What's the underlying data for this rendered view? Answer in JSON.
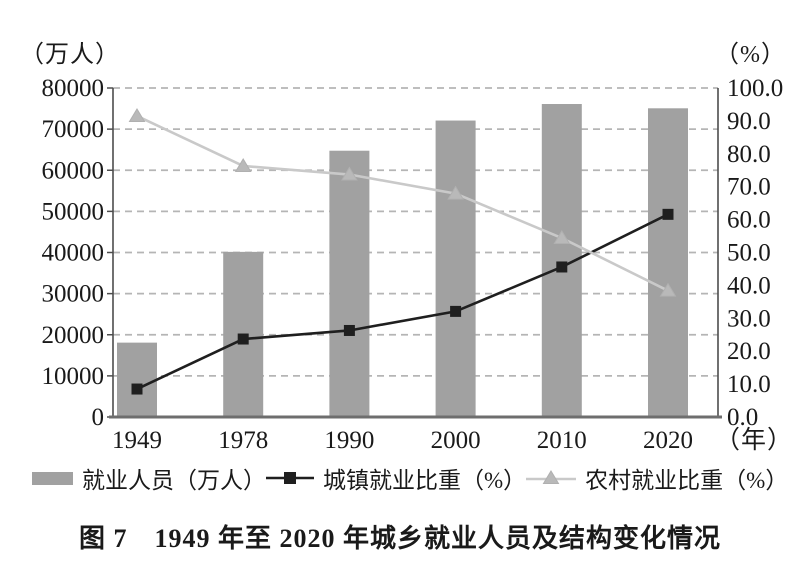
{
  "figure": {
    "caption": "图 7　1949 年至 2020 年城乡就业人员及结构变化情况"
  },
  "chart_data": {
    "type": "bar+line combo",
    "title": "图 7　1949 年至 2020 年城乡就业人员及结构变化情况",
    "categories": [
      "1949",
      "1978",
      "1990",
      "2000",
      "2010",
      "2020"
    ],
    "series": [
      {
        "name": "就业人员（万人）",
        "type": "bar",
        "axis": "left",
        "values": [
          18082,
          40152,
          64749,
          72085,
          76105,
          75064
        ],
        "color": "#a1a1a1"
      },
      {
        "name": "城镇就业比重（%）",
        "type": "line",
        "axis": "right",
        "marker": "square",
        "values": [
          8.5,
          23.7,
          26.3,
          32.1,
          45.6,
          61.6
        ],
        "color": "#1f1f1f",
        "marker_color": "#1f1f1f"
      },
      {
        "name": "农村就业比重（%）",
        "type": "line",
        "axis": "right",
        "marker": "triangle-up",
        "values": [
          91.5,
          76.3,
          73.7,
          67.9,
          54.4,
          38.4
        ],
        "color": "#c9c9c9",
        "marker_color": "#b9b9b9"
      }
    ],
    "left_axis": {
      "unit_label": "（万人）",
      "min": 0,
      "max": 80000,
      "step": 10000,
      "tick_labels": [
        "80000",
        "70000",
        "60000",
        "50000",
        "40000",
        "30000",
        "20000",
        "10000",
        "0"
      ]
    },
    "right_axis": {
      "unit_label": "（%）",
      "min": 0,
      "max": 100,
      "step": 10,
      "tick_labels": [
        "100.0",
        "90.0",
        "80.0",
        "70.0",
        "60.0",
        "50.0",
        "40.0",
        "30.0",
        "20.0",
        "10.0",
        "0.0"
      ]
    },
    "x_axis": {
      "unit_label": "（年）"
    },
    "grid": true,
    "gridline_style": "dashed",
    "legend_position": "bottom",
    "colors": {
      "grid": "#b5b5b5",
      "axis": "#4d4d4d",
      "baseline": "#6e6e6e",
      "text": "#1a1a1a",
      "background": "#ffffff"
    }
  }
}
